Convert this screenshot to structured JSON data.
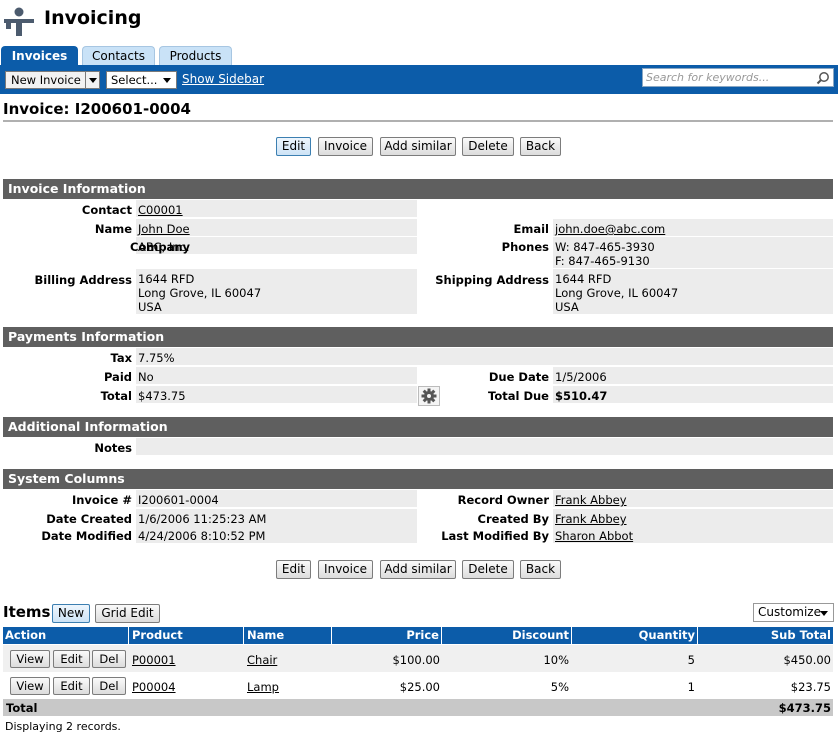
{
  "app": {
    "title": "Invoicing"
  },
  "tabs": [
    "Invoices",
    "Contacts",
    "Products"
  ],
  "toolbar": {
    "new_label": "New Invoice",
    "select_label": "Select...",
    "show_sidebar": "Show Sidebar",
    "search_placeholder": "Search for keywords..."
  },
  "page": {
    "title": "Invoice: I200601-0004"
  },
  "actions": {
    "edit": "Edit",
    "invoice": "Invoice",
    "add_similar": "Add similar",
    "delete": "Delete",
    "back": "Back"
  },
  "invoice_info": {
    "header": "Invoice Information",
    "contact_label": "Contact",
    "contact": "C00001",
    "name_label": "Name",
    "name": "John Doe",
    "email_label": "Email",
    "email": "john.doe@abc.com",
    "company_label": "Company",
    "company": "ABC, Inc.",
    "phones_label": "Phones",
    "phone_w": "W: 847-465-3930",
    "phone_f": "F: 847-465-9130",
    "billing_label": "Billing Address",
    "billing_1": "1644 RFD",
    "billing_2": "Long Grove, IL 60047",
    "billing_3": "USA",
    "shipping_label": "Shipping Address",
    "shipping_1": "1644 RFD",
    "shipping_2": "Long Grove, IL 60047",
    "shipping_3": "USA"
  },
  "payments": {
    "header": "Payments Information",
    "tax_label": "Tax",
    "tax": "7.75%",
    "paid_label": "Paid",
    "paid": "No",
    "due_date_label": "Due Date",
    "due_date": "1/5/2006",
    "total_label": "Total",
    "total": "$473.75",
    "total_due_label": "Total Due",
    "total_due": "$510.47"
  },
  "additional": {
    "header": "Additional Information",
    "notes_label": "Notes"
  },
  "system": {
    "header": "System Columns",
    "invoice_no_label": "Invoice #",
    "invoice_no": "I200601-0004",
    "record_owner_label": "Record Owner",
    "record_owner": "Frank Abbey",
    "date_created_label": "Date Created",
    "date_created": "1/6/2006 11:25:23 AM",
    "created_by_label": "Created By",
    "created_by": "Frank Abbey",
    "date_modified_label": "Date Modified",
    "date_modified": "4/24/2006 8:10:52 PM",
    "last_modified_by_label": "Last Modified By",
    "last_modified_by": "Sharon Abbot"
  },
  "items": {
    "title": "Items",
    "new_label": "New",
    "grid_edit_label": "Grid Edit",
    "customize_label": "Customize",
    "columns": [
      "Action",
      "Product",
      "Name",
      "Price",
      "Discount",
      "Quantity",
      "Sub Total"
    ],
    "row_buttons": {
      "view": "View",
      "edit": "Edit",
      "del": "Del"
    },
    "rows": [
      {
        "product": "P00001",
        "name": "Chair",
        "price": "$100.00",
        "discount": "10%",
        "quantity": "5",
        "subtotal": "$450.00"
      },
      {
        "product": "P00004",
        "name": "Lamp",
        "price": "$25.00",
        "discount": "5%",
        "quantity": "1",
        "subtotal": "$23.75"
      }
    ],
    "total_label": "Total",
    "total_value": "$473.75",
    "footer": "Displaying 2 records."
  }
}
